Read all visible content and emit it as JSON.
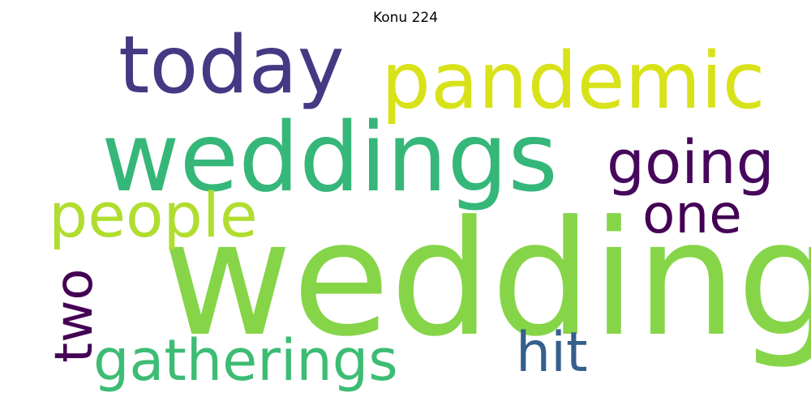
{
  "title": "Konu 224",
  "words": {
    "wedding": {
      "text": "wedding",
      "color": "#86d549"
    },
    "weddings": {
      "text": "weddings",
      "color": "#35b779"
    },
    "today": {
      "text": "today",
      "color": "#443983"
    },
    "pandemic": {
      "text": "pandemic",
      "color": "#d8e219"
    },
    "going": {
      "text": "going",
      "color": "#46085c"
    },
    "people": {
      "text": "people",
      "color": "#b0dd2f"
    },
    "one": {
      "text": "one",
      "color": "#440154"
    },
    "gatherings": {
      "text": "gatherings",
      "color": "#3dbc74"
    },
    "hit": {
      "text": "hit",
      "color": "#355f8d"
    },
    "two": {
      "text": "two",
      "color": "#440154"
    }
  }
}
